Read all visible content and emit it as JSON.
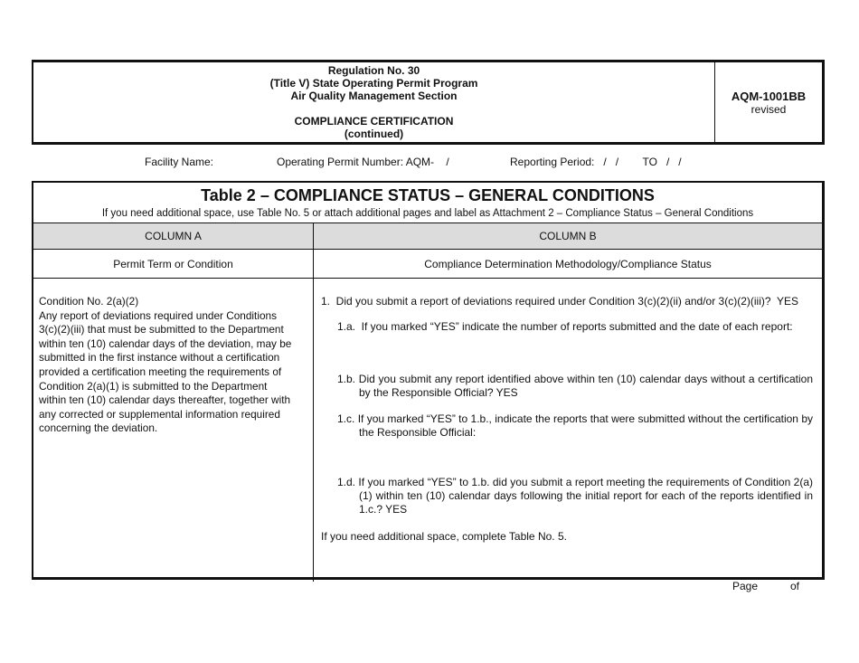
{
  "header": {
    "lines": [
      "Regulation No. 30",
      "(Title V) State Operating Permit Program",
      "Air Quality Management Section",
      "COMPLIANCE CERTIFICATION",
      "(continued)"
    ],
    "form_number": "AQM-1001BB",
    "revised": "revised"
  },
  "fields": {
    "facility_name": "Facility Name:",
    "permit_number": "Operating Permit Number: AQM-    /",
    "reporting_period": "Reporting Period:   /   /        TO   /   /"
  },
  "table": {
    "title": "Table 2 – COMPLIANCE STATUS – GENERAL CONDITIONS",
    "subtitle": "If you need additional space, use Table No. 5 or attach additional pages and label as Attachment 2 – Compliance Status – General Conditions",
    "col_a_header": "COLUMN A",
    "col_b_header": "COLUMN B",
    "col_a_sub": "Permit Term or Condition",
    "col_b_sub": "Compliance Determination Methodology/Compliance Status",
    "col_a_lines": [
      "Condition No. 2(a)(2)",
      "Any report of deviations required under Conditions",
      "3(c)(2)(iii) that must be submitted to the Department",
      "within ten (10) calendar days of the deviation, may be",
      "submitted in the first instance without a certification",
      "provided a certification meeting the requirements of",
      "Condition 2(a)(1) is submitted to the Department",
      "within ten (10) calendar days thereafter, together with",
      "any corrected or supplemental information required",
      "concerning the deviation."
    ],
    "q1": "1.  Did you submit a report of deviations required under Condition 3(c)(2)(ii) and/or 3(c)(2)(iii)?  YES",
    "q1a": "1.a.  If you marked “YES” indicate the number of reports submitted and the date of each report:",
    "q1b": "1.b.  Did you submit any report identified above within ten (10) calendar days without a certification by the Responsible Official?  YES",
    "q1c": "1.c.  If you marked “YES” to 1.b., indicate the reports that were submitted without the certification by the Responsible Official:",
    "q1d": "1.d.  If you marked “YES” to 1.b. did you submit a report meeting the requirements of Condition 2(a)(1) within ten (10) calendar days following the initial report for each of the reports identified in 1.c.?  YES",
    "footer_note": "If you need additional space, complete Table No. 5."
  },
  "page": {
    "page_label": "Page",
    "of_label": "of"
  }
}
